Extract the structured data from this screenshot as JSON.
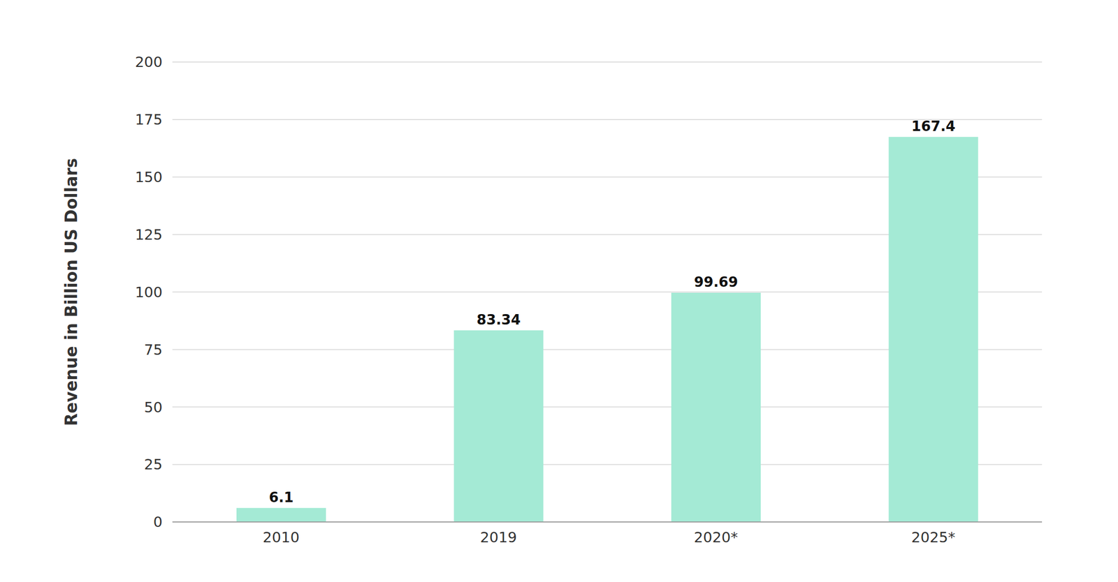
{
  "chart_data": {
    "type": "bar",
    "y_label": "Revenue in Billion US Dollars",
    "categories": [
      "2010",
      "2019",
      "2020*",
      "2025*"
    ],
    "values": [
      6.1,
      83.34,
      99.69,
      167.4
    ],
    "color": "#a4ead5",
    "ylim": [
      0,
      200
    ],
    "yticks": [
      0,
      25,
      50,
      75,
      100,
      125,
      150,
      175,
      200
    ],
    "grid": true,
    "data_labels": true
  }
}
